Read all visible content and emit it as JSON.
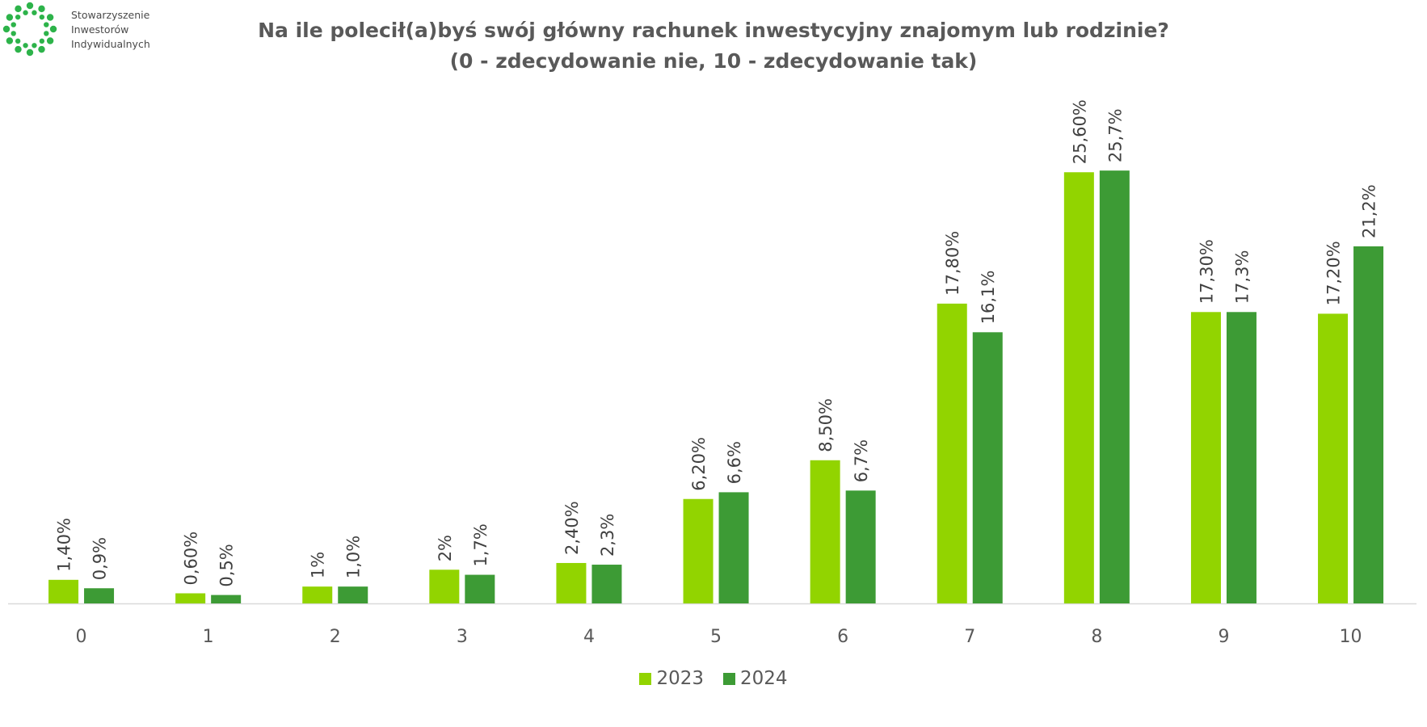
{
  "logo": {
    "lines": [
      "Stowarzyszenie",
      "Inwestorów",
      "Indywidualnych"
    ],
    "color": "#2db34a"
  },
  "chart_data": {
    "type": "bar",
    "title": "Na ile polecił(a)byś swój główny rachunek inwestycyjny znajomym lub rodzinie?",
    "subtitle": "(0 - zdecydowanie nie, 10 - zdecydowanie tak)",
    "xlabel": "",
    "ylabel": "",
    "categories": [
      "0",
      "1",
      "2",
      "3",
      "4",
      "5",
      "6",
      "7",
      "8",
      "9",
      "10"
    ],
    "series": [
      {
        "name": "2023",
        "color": "#92d400",
        "values": [
          1.4,
          0.6,
          1,
          2,
          2.4,
          6.2,
          8.5,
          17.8,
          25.6,
          17.3,
          17.2
        ],
        "labels": [
          "1,40%",
          "0,60%",
          "1%",
          "2%",
          "2,40%",
          "6,20%",
          "8,50%",
          "17,80%",
          "25,60%",
          "17,30%",
          "17,20%"
        ]
      },
      {
        "name": "2024",
        "color": "#3d9b35",
        "values": [
          0.9,
          0.5,
          1.0,
          1.7,
          2.3,
          6.6,
          6.7,
          16.1,
          25.7,
          17.3,
          21.2
        ],
        "labels": [
          "0,9%",
          "0,5%",
          "1,0%",
          "1,7%",
          "2,3%",
          "6,6%",
          "6,7%",
          "16,1%",
          "25,7%",
          "17,3%",
          "21,2%"
        ]
      }
    ],
    "ylim": [
      0,
      26
    ],
    "grid": false,
    "legend_position": "bottom"
  }
}
